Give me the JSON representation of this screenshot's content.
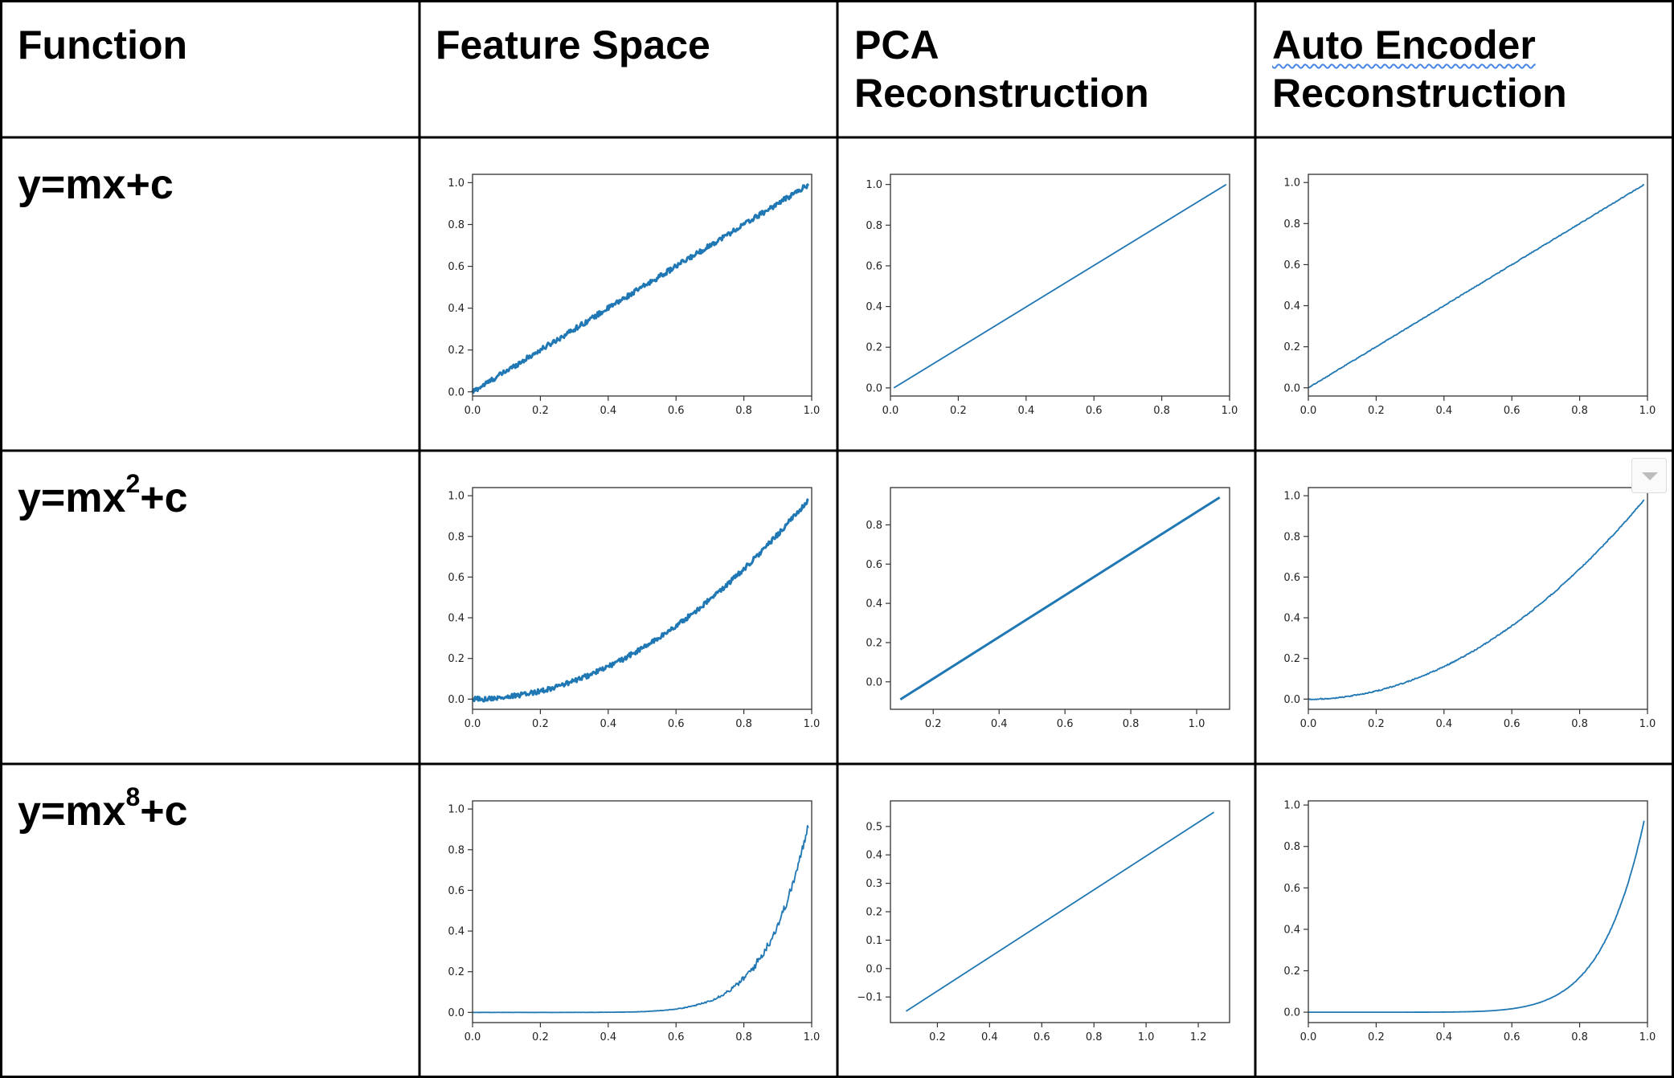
{
  "headers": {
    "function": "Function",
    "feature_space": "Feature Space",
    "pca_line1": "PCA",
    "pca_line2": "Reconstruction",
    "ae_line1": "Auto Encoder",
    "ae_line2": "Reconstruction"
  },
  "rows": [
    {
      "eq_base": "y=mx",
      "eq_sup": "",
      "eq_tail": "+c"
    },
    {
      "eq_base": "y=mx",
      "eq_sup": "2",
      "eq_tail": "+c"
    },
    {
      "eq_base": "y=mx",
      "eq_sup": "8",
      "eq_tail": "+c"
    }
  ],
  "colors": {
    "line": "#1f77b4",
    "border": "#000000",
    "axes": "#333333"
  },
  "chart_data": [
    {
      "id": "r1-feature",
      "type": "line",
      "func": "linear",
      "noise": 0.012,
      "thick": true,
      "xlim": [
        0,
        1
      ],
      "ylim": [
        -0.02,
        1.04
      ],
      "xticks": [
        "0.0",
        "0.2",
        "0.4",
        "0.6",
        "0.8",
        "1.0"
      ],
      "xtick_vals": [
        0,
        0.2,
        0.4,
        0.6,
        0.8,
        1.0
      ],
      "yticks": [
        "0.0",
        "0.2",
        "0.4",
        "0.6",
        "0.8",
        "1.0"
      ],
      "ytick_vals": [
        0,
        0.2,
        0.4,
        0.6,
        0.8,
        1.0
      ]
    },
    {
      "id": "r1-pca",
      "type": "line",
      "func": "segment",
      "x": [
        0.01,
        0.99
      ],
      "y": [
        0.0,
        1.0
      ],
      "noise": 0,
      "xlim": [
        0,
        1
      ],
      "ylim": [
        -0.04,
        1.05
      ],
      "xticks": [
        "0.0",
        "0.2",
        "0.4",
        "0.6",
        "0.8",
        "1.0"
      ],
      "xtick_vals": [
        0,
        0.2,
        0.4,
        0.6,
        0.8,
        1.0
      ],
      "yticks": [
        "0.0",
        "0.2",
        "0.4",
        "0.6",
        "0.8",
        "1.0"
      ],
      "ytick_vals": [
        0,
        0.2,
        0.4,
        0.6,
        0.8,
        1.0
      ]
    },
    {
      "id": "r1-ae",
      "type": "line",
      "func": "linear",
      "noise": 0.002,
      "xlim": [
        0,
        1
      ],
      "ylim": [
        -0.04,
        1.04
      ],
      "xticks": [
        "0.0",
        "0.2",
        "0.4",
        "0.6",
        "0.8",
        "1.0"
      ],
      "xtick_vals": [
        0,
        0.2,
        0.4,
        0.6,
        0.8,
        1.0
      ],
      "yticks": [
        "0.0",
        "0.2",
        "0.4",
        "0.6",
        "0.8",
        "1.0"
      ],
      "ytick_vals": [
        0,
        0.2,
        0.4,
        0.6,
        0.8,
        1.0
      ]
    },
    {
      "id": "r2-feature",
      "type": "line",
      "func": "square",
      "noise": 0.012,
      "thick": true,
      "xlim": [
        0,
        1
      ],
      "ylim": [
        -0.05,
        1.04
      ],
      "xticks": [
        "0.0",
        "0.2",
        "0.4",
        "0.6",
        "0.8",
        "1.0"
      ],
      "xtick_vals": [
        0,
        0.2,
        0.4,
        0.6,
        0.8,
        1.0
      ],
      "yticks": [
        "0.0",
        "0.2",
        "0.4",
        "0.6",
        "0.8",
        "1.0"
      ],
      "ytick_vals": [
        0,
        0.2,
        0.4,
        0.6,
        0.8,
        1.0
      ]
    },
    {
      "id": "r2-pca",
      "type": "line",
      "func": "segment",
      "x": [
        0.1,
        1.07
      ],
      "y": [
        -0.09,
        0.94
      ],
      "noise": 0,
      "thick": true,
      "xlim": [
        0.07,
        1.1
      ],
      "ylim": [
        -0.14,
        0.99
      ],
      "xticks": [
        "0.2",
        "0.4",
        "0.6",
        "0.8",
        "1.0"
      ],
      "xtick_vals": [
        0.2,
        0.4,
        0.6,
        0.8,
        1.0
      ],
      "yticks": [
        "0.0",
        "0.2",
        "0.4",
        "0.6",
        "0.8"
      ],
      "ytick_vals": [
        0,
        0.2,
        0.4,
        0.6,
        0.8
      ]
    },
    {
      "id": "r2-ae",
      "type": "line",
      "func": "square",
      "noise": 0.003,
      "xlim": [
        0,
        1
      ],
      "ylim": [
        -0.05,
        1.04
      ],
      "xticks": [
        "0.0",
        "0.2",
        "0.4",
        "0.6",
        "0.8",
        "1.0"
      ],
      "xtick_vals": [
        0,
        0.2,
        0.4,
        0.6,
        0.8,
        1.0
      ],
      "yticks": [
        "0.0",
        "0.2",
        "0.4",
        "0.6",
        "0.8",
        "1.0"
      ],
      "ytick_vals": [
        0,
        0.2,
        0.4,
        0.6,
        0.8,
        1.0
      ]
    },
    {
      "id": "r3-feature",
      "type": "line",
      "func": "pow8",
      "noise": 0.02,
      "xlim": [
        0,
        1
      ],
      "ylim": [
        -0.05,
        1.04
      ],
      "xticks": [
        "0.0",
        "0.2",
        "0.4",
        "0.6",
        "0.8",
        "1.0"
      ],
      "xtick_vals": [
        0,
        0.2,
        0.4,
        0.6,
        0.8,
        1.0
      ],
      "yticks": [
        "0.0",
        "0.2",
        "0.4",
        "0.6",
        "0.8",
        "1.0"
      ],
      "ytick_vals": [
        0,
        0.2,
        0.4,
        0.6,
        0.8,
        1.0
      ]
    },
    {
      "id": "r3-pca",
      "type": "line",
      "func": "segment",
      "x": [
        0.08,
        1.26
      ],
      "y": [
        -0.15,
        0.55
      ],
      "noise": 0,
      "xlim": [
        0.02,
        1.32
      ],
      "ylim": [
        -0.19,
        0.59
      ],
      "xticks": [
        "0.2",
        "0.4",
        "0.6",
        "0.8",
        "1.0",
        "1.2"
      ],
      "xtick_vals": [
        0.2,
        0.4,
        0.6,
        0.8,
        1.0,
        1.2
      ],
      "yticks": [
        "−0.1",
        "0.0",
        "0.1",
        "0.2",
        "0.3",
        "0.4",
        "0.5"
      ],
      "ytick_vals": [
        -0.1,
        0,
        0.1,
        0.2,
        0.3,
        0.4,
        0.5
      ]
    },
    {
      "id": "r3-ae",
      "type": "line",
      "func": "pow8",
      "noise": 0.002,
      "xlim": [
        0,
        1
      ],
      "ylim": [
        -0.05,
        1.02
      ],
      "xticks": [
        "0.0",
        "0.2",
        "0.4",
        "0.6",
        "0.8",
        "1.0"
      ],
      "xtick_vals": [
        0,
        0.2,
        0.4,
        0.6,
        0.8,
        1.0
      ],
      "yticks": [
        "0.0",
        "0.2",
        "0.4",
        "0.6",
        "0.8",
        "1.0"
      ],
      "ytick_vals": [
        0,
        0.2,
        0.4,
        0.6,
        0.8,
        1.0
      ]
    }
  ]
}
